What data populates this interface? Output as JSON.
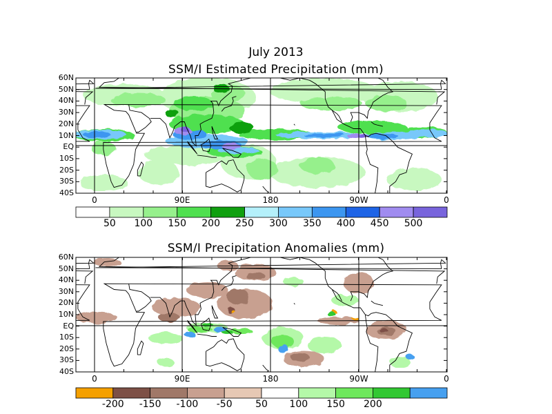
{
  "figure": {
    "title": "July 2013"
  },
  "panels": [
    {
      "id": "estimated",
      "title": "SSM/I Estimated Precipitation (mm)",
      "lat_labels": [
        "60N",
        "50N",
        "40N",
        "30N",
        "20N",
        "10N",
        "EQ",
        "10S",
        "20S",
        "30S",
        "40S"
      ],
      "lon_labels": [
        "0",
        "90E",
        "180",
        "90W",
        "0"
      ],
      "colorbar": {
        "colors": [
          "#ffffff",
          "#c8f8c0",
          "#96f08c",
          "#50e050",
          "#10a010",
          "#b4f0fa",
          "#78c8fa",
          "#3c96f0",
          "#1e64e6",
          "#a08cf0",
          "#7864dc"
        ],
        "labels": [
          "50",
          "100",
          "150",
          "200",
          "250",
          "300",
          "350",
          "400",
          "450",
          "500"
        ]
      }
    },
    {
      "id": "anomalies",
      "title": "SSM/I Precipitation Anomalies (mm)",
      "lat_labels": [
        "60N",
        "50N",
        "40N",
        "30N",
        "20N",
        "10N",
        "EQ",
        "10S",
        "20S",
        "30S",
        "40S"
      ],
      "lon_labels": [
        "0",
        "90E",
        "180",
        "90W",
        "0"
      ],
      "colorbar": {
        "colors": [
          "#f5a000",
          "#7d5046",
          "#a07868",
          "#c8a090",
          "#e6c8b4",
          "#ffffff",
          "#b4f8a8",
          "#6ee85c",
          "#32c832",
          "#46a0f0"
        ],
        "labels": [
          "-200",
          "-150",
          "-100",
          "-50",
          "50",
          "100",
          "150",
          "200"
        ]
      }
    }
  ]
}
